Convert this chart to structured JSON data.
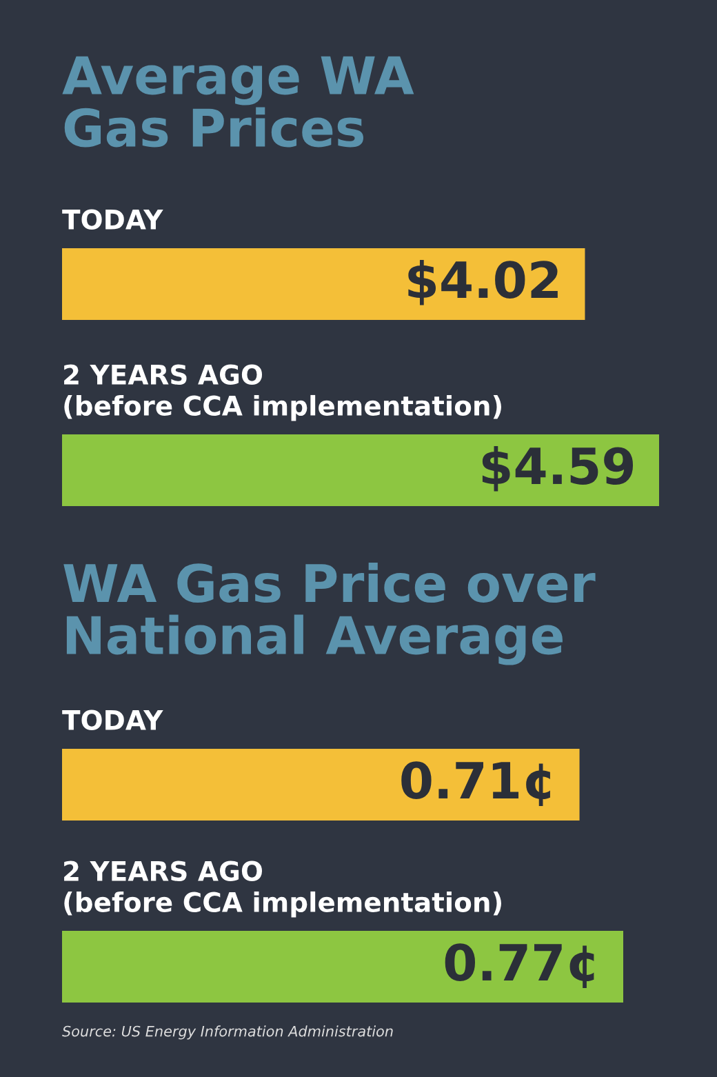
{
  "chart_data": [
    {
      "type": "bar",
      "orientation": "horizontal",
      "title": "Average WA\nGas Prices",
      "categories": [
        "TODAY",
        "2 YEARS AGO\n(before CCA implementation)"
      ],
      "values": [
        4.02,
        4.59
      ],
      "colors": [
        "#f4bf38",
        "#8dc641"
      ],
      "value_labels": [
        "$4.02",
        "$4.59"
      ]
    },
    {
      "type": "bar",
      "orientation": "horizontal",
      "title": "WA Gas Price over\nNational Average",
      "categories": [
        "TODAY",
        "2 YEARS AGO\n(before CCA implementation)"
      ],
      "values": [
        0.71,
        0.77
      ],
      "colors": [
        "#f4bf38",
        "#8dc641"
      ],
      "value_labels": [
        "0.71¢",
        "0.77¢"
      ],
      "annotations": [
        "Source: US Energy Information Administration"
      ]
    }
  ]
}
